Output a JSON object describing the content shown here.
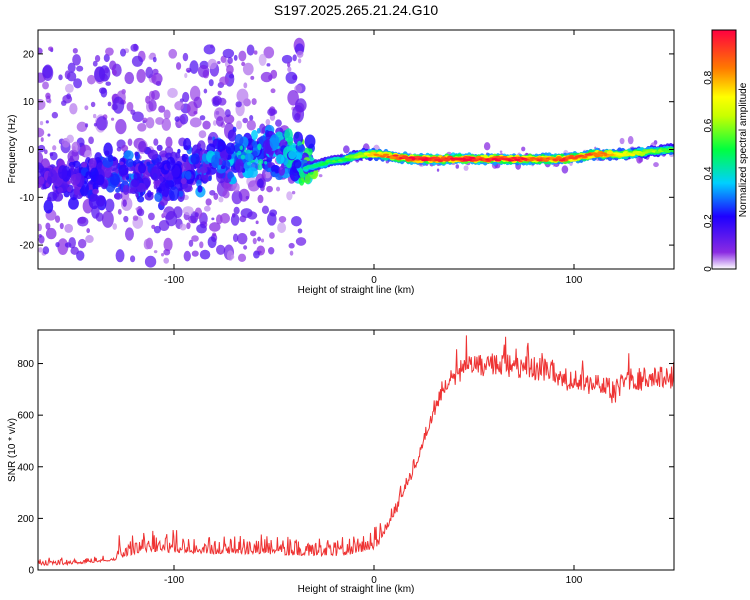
{
  "title": "S197.2025.265.21.24.G10",
  "chart_data": [
    {
      "type": "heatmap",
      "xlabel": "Height of straight line (km)",
      "ylabel": "Frequency (Hz)",
      "xlim": [
        -168,
        150
      ],
      "ylim": [
        -25,
        25
      ],
      "xticks": [
        -100,
        0,
        100
      ],
      "yticks": [
        -20,
        -10,
        0,
        10,
        20
      ],
      "colorbar": {
        "label": "Normalized spectral amplitude",
        "range": [
          0,
          1
        ],
        "ticks": [
          0.0,
          0.2,
          0.4,
          0.6,
          0.8
        ]
      },
      "ridge_profile": {
        "x": [
          -168,
          -120,
          -100,
          -80,
          -60,
          -45,
          -35,
          -25,
          -15,
          -5,
          0,
          20,
          50,
          75,
          85,
          95,
          110,
          125,
          150
        ],
        "frequency": [
          -6,
          -5,
          -6,
          -3,
          -1,
          0,
          -4,
          -3,
          -2,
          -1,
          -1,
          -2,
          -2,
          -2,
          -2,
          -2,
          -1,
          -1,
          0
        ],
        "amplitude": [
          0.15,
          0.25,
          0.2,
          0.3,
          0.35,
          0.3,
          0.45,
          0.5,
          0.55,
          0.65,
          0.8,
          1.0,
          1.0,
          0.95,
          0.9,
          0.95,
          0.9,
          0.75,
          0.55
        ]
      }
    },
    {
      "type": "line",
      "xlabel": "Height of straight line (km)",
      "ylabel": "SNR (10 * v/v)",
      "xlim": [
        -168,
        150
      ],
      "ylim": [
        0,
        930
      ],
      "xticks": [
        -100,
        0,
        100
      ],
      "yticks": [
        0,
        200,
        400,
        600,
        800
      ],
      "series": [
        {
          "name": "SNR",
          "color": "#ee3333",
          "x": [
            -168,
            -150,
            -130,
            -115,
            -100,
            -80,
            -60,
            -40,
            -20,
            -10,
            0,
            5,
            10,
            15,
            20,
            25,
            30,
            35,
            40,
            45,
            50,
            60,
            70,
            80,
            90,
            95,
            100,
            110,
            118,
            120,
            125,
            135,
            150
          ],
          "y": [
            25,
            30,
            45,
            80,
            75,
            70,
            70,
            65,
            60,
            70,
            90,
            120,
            200,
            300,
            380,
            500,
            600,
            690,
            750,
            780,
            790,
            795,
            790,
            780,
            770,
            740,
            730,
            720,
            700,
            680,
            740,
            740,
            745
          ]
        }
      ]
    }
  ],
  "colors": {
    "line": "#ee3333",
    "frame": "#000000"
  }
}
